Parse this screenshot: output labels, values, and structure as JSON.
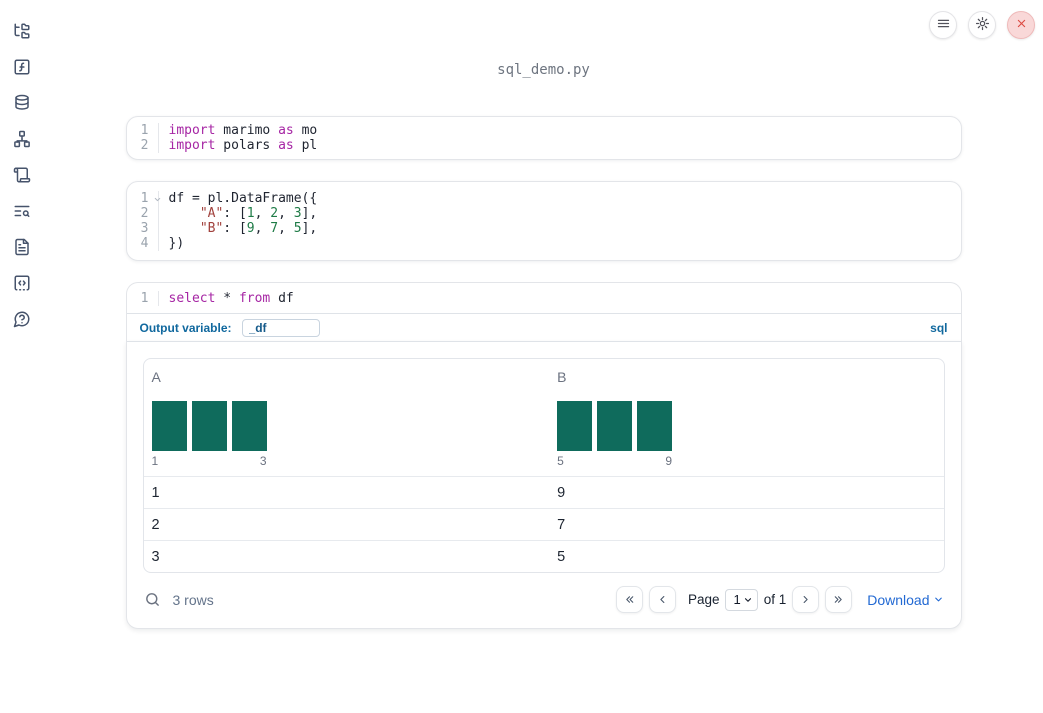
{
  "window": {
    "title": "sql_demo.py"
  },
  "topbar": {
    "buttons": [
      {
        "id": "notebook-menu",
        "icon": "hamburger-icon"
      },
      {
        "id": "settings",
        "icon": "gear-icon"
      },
      {
        "id": "shutdown",
        "icon": "close-icon"
      }
    ]
  },
  "sidebar": {
    "items": [
      {
        "id": "file-explorer",
        "icon": "file-tree-icon"
      },
      {
        "id": "variables",
        "icon": "function-square-icon"
      },
      {
        "id": "data-sources",
        "icon": "database-icon"
      },
      {
        "id": "dependency-graph",
        "icon": "network-icon"
      },
      {
        "id": "outline",
        "icon": "scroll-icon"
      },
      {
        "id": "logs",
        "icon": "list-search-icon"
      },
      {
        "id": "documentation",
        "icon": "file-text-icon"
      },
      {
        "id": "snippets",
        "icon": "code-square-icon"
      },
      {
        "id": "help",
        "icon": "help-bubble-icon"
      }
    ]
  },
  "cells": [
    {
      "id": "imports-cell",
      "lines": [
        {
          "num": "1",
          "foldable": false,
          "tokens": [
            [
              "kw",
              "import"
            ],
            [
              "pl",
              " marimo "
            ],
            [
              "kw",
              "as"
            ],
            [
              "pl",
              " mo"
            ]
          ]
        },
        {
          "num": "2",
          "foldable": false,
          "tokens": [
            [
              "kw",
              "import"
            ],
            [
              "pl",
              " polars "
            ],
            [
              "kw",
              "as"
            ],
            [
              "pl",
              " pl"
            ]
          ]
        }
      ]
    },
    {
      "id": "dataframe-cell",
      "lines": [
        {
          "num": "1",
          "foldable": true,
          "tokens": [
            [
              "pl",
              "df = pl.DataFrame({"
            ]
          ]
        },
        {
          "num": "2",
          "foldable": false,
          "tokens": [
            [
              "pl",
              "    "
            ],
            [
              "str",
              "\"A\""
            ],
            [
              "pl",
              ": ["
            ],
            [
              "num",
              "1"
            ],
            [
              "pl",
              ", "
            ],
            [
              "num",
              "2"
            ],
            [
              "pl",
              ", "
            ],
            [
              "num",
              "3"
            ],
            [
              "pl",
              "],"
            ]
          ]
        },
        {
          "num": "3",
          "foldable": false,
          "tokens": [
            [
              "pl",
              "    "
            ],
            [
              "str",
              "\"B\""
            ],
            [
              "pl",
              ": ["
            ],
            [
              "num",
              "9"
            ],
            [
              "pl",
              ", "
            ],
            [
              "num",
              "7"
            ],
            [
              "pl",
              ", "
            ],
            [
              "num",
              "5"
            ],
            [
              "pl",
              "],"
            ]
          ]
        },
        {
          "num": "4",
          "foldable": false,
          "tokens": [
            [
              "pl",
              "})"
            ]
          ]
        }
      ]
    },
    {
      "id": "sql-cell",
      "lines": [
        {
          "num": "1",
          "foldable": false,
          "tokens": [
            [
              "kw",
              "select"
            ],
            [
              "pl",
              " * "
            ],
            [
              "kw",
              "from"
            ],
            [
              "pl",
              " df"
            ]
          ]
        }
      ],
      "footer": {
        "label": "Output variable:",
        "value": "_df",
        "language": "sql"
      }
    }
  ],
  "output": {
    "columns": [
      {
        "name": "A",
        "histogram": {
          "bars": [
            1,
            1,
            1
          ],
          "min_label": "1",
          "max_label": "3"
        }
      },
      {
        "name": "B",
        "histogram": {
          "bars": [
            1,
            1,
            1
          ],
          "min_label": "5",
          "max_label": "9"
        }
      }
    ],
    "rows": [
      [
        "1",
        "9"
      ],
      [
        "2",
        "7"
      ],
      [
        "3",
        "5"
      ]
    ],
    "footer": {
      "row_count": "3 rows",
      "pagination": {
        "page_label": "Page",
        "page_value": "1",
        "of_label": "of 1"
      },
      "download_label": "Download"
    }
  },
  "colors": {
    "keyword": "#a626a4",
    "string": "#a1413c",
    "number": "#1e7b46",
    "accent_blue": "#10689e",
    "link_blue": "#2269d3",
    "histogram_bar": "#0f6b5c",
    "shutdown_red": "#dd4b43",
    "icon_slate": "#46536b"
  }
}
